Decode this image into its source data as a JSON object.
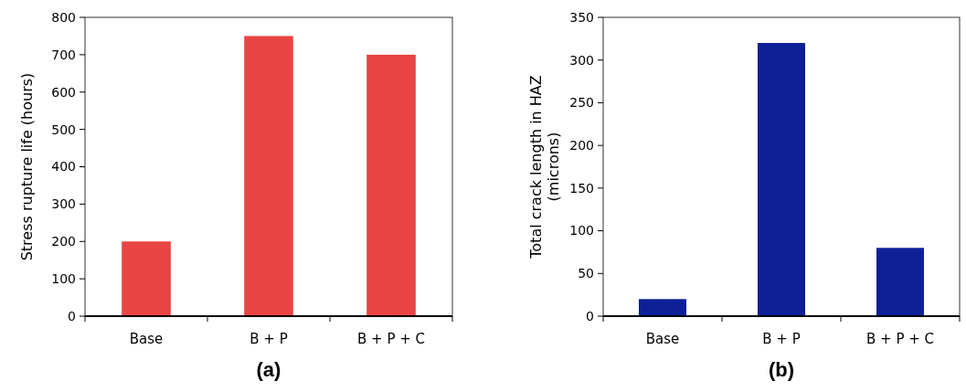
{
  "chart_data": [
    {
      "type": "bar",
      "title": "(a)",
      "ylabel": "Stress rupture life (hours)",
      "categories": [
        "Base",
        "B + P",
        "B + P + C"
      ],
      "values": [
        200,
        750,
        700
      ],
      "color": "#e84444",
      "ylim": [
        0,
        800
      ],
      "yticks": [
        0,
        100,
        200,
        300,
        400,
        500,
        600,
        700,
        800
      ],
      "grid": false
    },
    {
      "type": "bar",
      "title": "(b)",
      "ylabel": "Total crack length in HAZ\n(microns)",
      "categories": [
        "Base",
        "B + P",
        "B + P + C"
      ],
      "values": [
        20,
        320,
        80
      ],
      "color": "#0f1f96",
      "ylim": [
        0,
        350
      ],
      "yticks": [
        0,
        50,
        100,
        150,
        200,
        250,
        300,
        350
      ],
      "grid": false
    }
  ]
}
